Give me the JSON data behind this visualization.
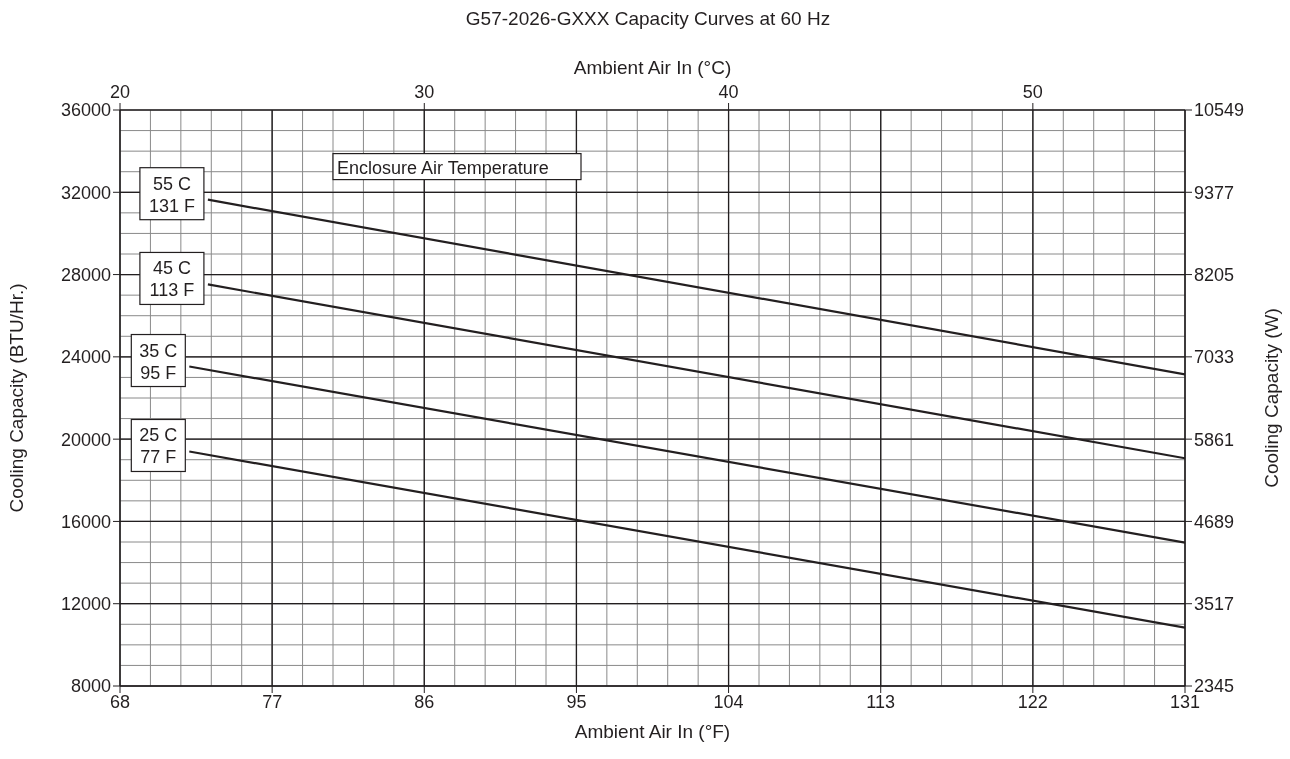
{
  "chart_data": {
    "type": "line",
    "title": "G57-2026-GXXX Capacity Curves at 60 Hz",
    "xlabel": "Ambient Air In (°F)",
    "ylabel": "Cooling Capacity (BTU/Hr.)",
    "y2label": "Cooling Capacity (W)",
    "x2label": "Ambient Air In (°C)",
    "xlim": [
      68,
      131
    ],
    "xticks": [
      68,
      77,
      86,
      95,
      104,
      113,
      122,
      131
    ],
    "ylim": [
      8000,
      36000
    ],
    "yticks": [
      8000,
      12000,
      16000,
      20000,
      24000,
      28000,
      32000,
      36000
    ],
    "y2lim": [
      2345,
      10549
    ],
    "y2ticks": [
      2345,
      3517,
      4689,
      5861,
      7033,
      8205,
      9377,
      10549
    ],
    "x2lim": [
      20,
      55
    ],
    "x2ticks": [
      20,
      30,
      40,
      50
    ],
    "grid": true,
    "marker": "none",
    "line_style": "solid",
    "annotations": [
      "Enclosure Air Temperature"
    ],
    "series": [
      {
        "name": "55 C\n131 F",
        "color": "#231f20",
        "x": [
          73.2,
          131
        ],
        "values": [
          31640,
          23150
        ]
      },
      {
        "name": "45 C\n113 F",
        "color": "#231f20",
        "x": [
          73.2,
          131
        ],
        "values": [
          27520,
          19070
        ]
      },
      {
        "name": "35 C\n95 F",
        "color": "#231f20",
        "x": [
          72.1,
          131
        ],
        "values": [
          23530,
          14970
        ]
      },
      {
        "name": "25 C\n77 F",
        "color": "#231f20",
        "x": [
          72.1,
          131
        ],
        "values": [
          19400,
          10840
        ]
      }
    ]
  }
}
